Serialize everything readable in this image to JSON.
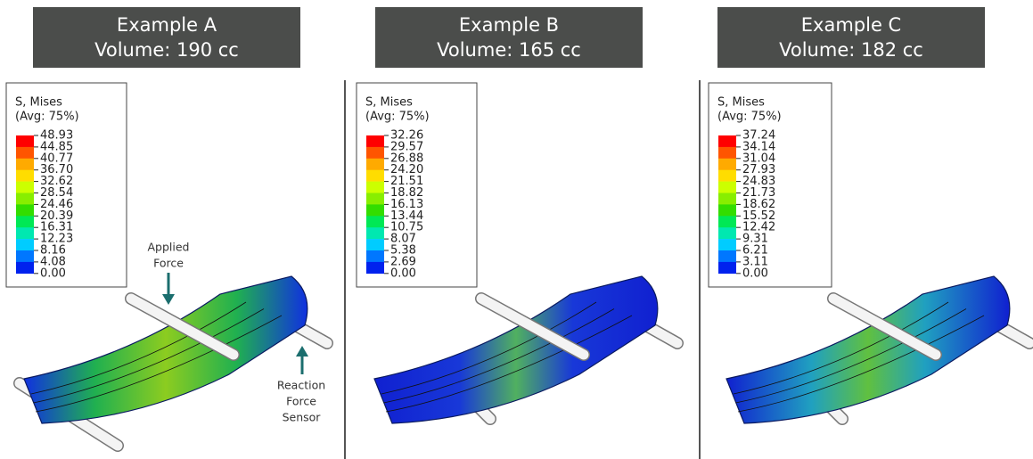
{
  "panels": [
    {
      "title": "Example A",
      "volume": "Volume: 190 cc",
      "legend": {
        "title": "S, Mises",
        "subtitle": "(Avg: 75%)",
        "values": [
          "48.93",
          "44.85",
          "40.77",
          "36.70",
          "32.62",
          "28.54",
          "24.46",
          "20.39",
          "16.31",
          "12.23",
          "8.16",
          "4.08",
          "0.00"
        ]
      }
    },
    {
      "title": "Example B",
      "volume": "Volume: 165 cc",
      "legend": {
        "title": "S, Mises",
        "subtitle": "(Avg: 75%)",
        "values": [
          "32.26",
          "29.57",
          "26.88",
          "24.20",
          "21.51",
          "18.82",
          "16.13",
          "13.44",
          "10.75",
          "8.07",
          "5.38",
          "2.69",
          "0.00"
        ]
      }
    },
    {
      "title": "Example C",
      "volume": "Volume: 182 cc",
      "legend": {
        "title": "S, Mises",
        "subtitle": "(Avg: 75%)",
        "values": [
          "37.24",
          "34.14",
          "31.04",
          "27.93",
          "24.83",
          "21.73",
          "18.62",
          "15.52",
          "12.42",
          "9.31",
          "6.21",
          "3.11",
          "0.00"
        ]
      }
    }
  ],
  "annotations": {
    "applied_force": [
      "Applied",
      "Force"
    ],
    "reaction_force_sensor": [
      "Reaction",
      "Force",
      "Sensor"
    ]
  },
  "legend_colors": [
    "#ff0000",
    "#ff5500",
    "#ffaa00",
    "#ffdd00",
    "#ccff00",
    "#88ee00",
    "#33dd00",
    "#00e855",
    "#00e8b0",
    "#00ccff",
    "#0077ff",
    "#0022ee"
  ]
}
